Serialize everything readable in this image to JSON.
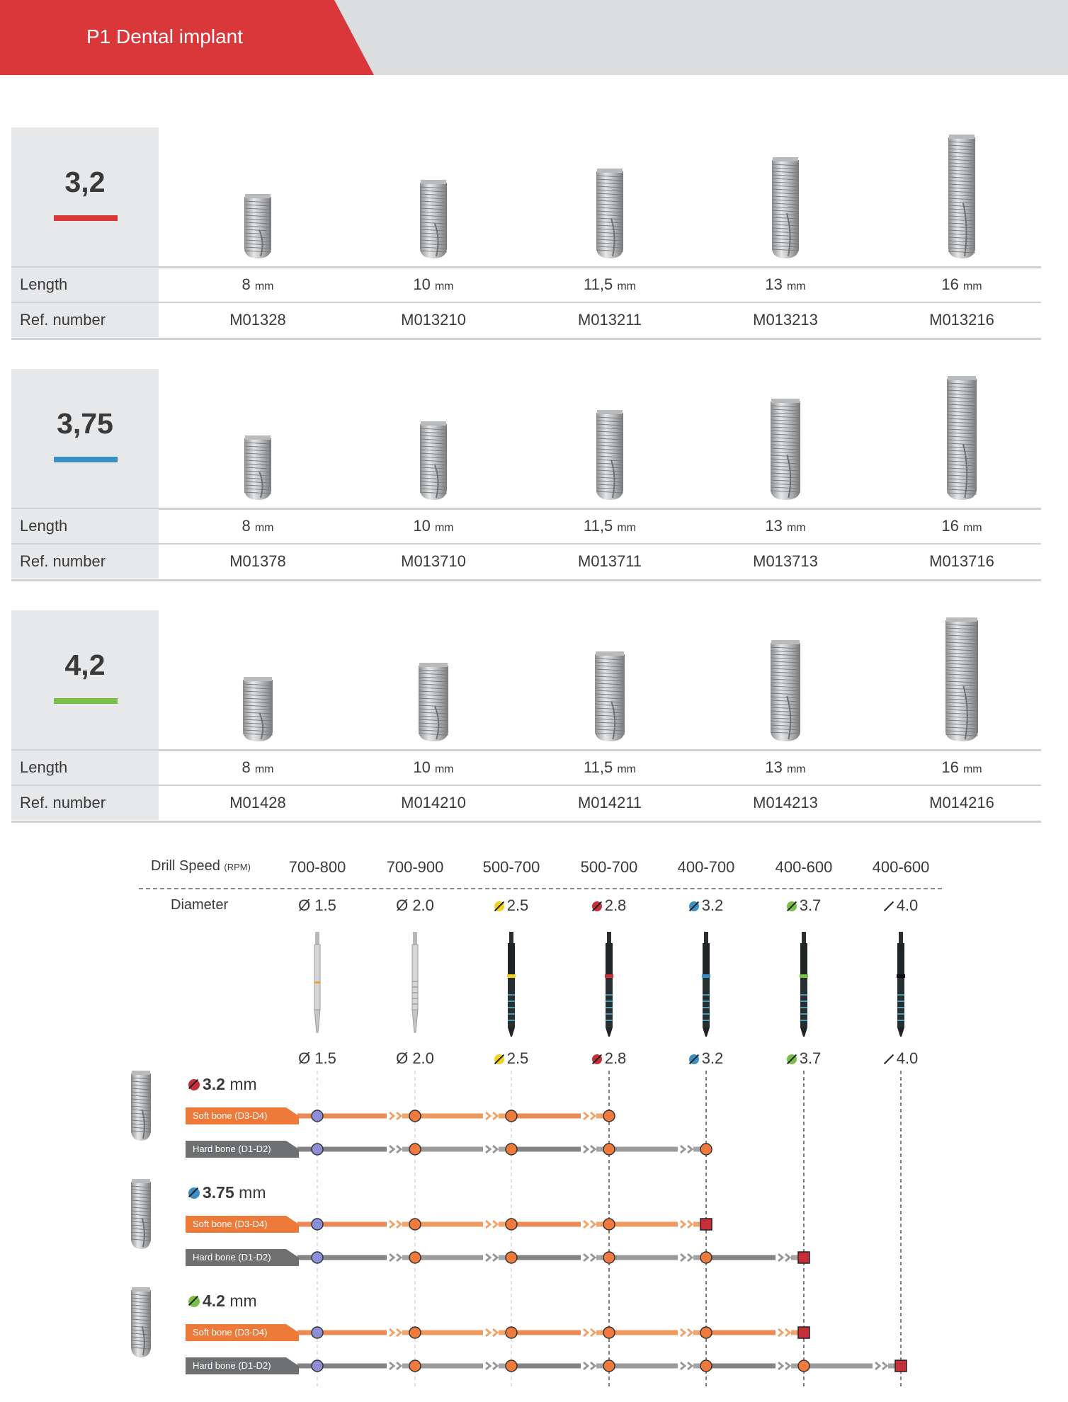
{
  "header": {
    "title": "P1 Dental implant"
  },
  "colors": {
    "red": "#d9373a",
    "blue": "#3a8fc4",
    "green": "#7bbf48",
    "yellow": "#f2d21e",
    "orange": "#ee7a3a",
    "grey": "#7b7b7b",
    "dark_red": "#c62e38"
  },
  "labels": {
    "length": "Length",
    "ref": "Ref. number",
    "mm": "mm"
  },
  "implants": [
    {
      "diameter": "3,2",
      "color": "red",
      "items": [
        {
          "length": "8",
          "ref": "M01328"
        },
        {
          "length": "10",
          "ref": "M013210"
        },
        {
          "length": "11,5",
          "ref": "M013211"
        },
        {
          "length": "13",
          "ref": "M013213"
        },
        {
          "length": "16",
          "ref": "M013216"
        }
      ]
    },
    {
      "diameter": "3,75",
      "color": "blue",
      "items": [
        {
          "length": "8",
          "ref": "M01378"
        },
        {
          "length": "10",
          "ref": "M013710"
        },
        {
          "length": "11,5",
          "ref": "M013711"
        },
        {
          "length": "13",
          "ref": "M013713"
        },
        {
          "length": "16",
          "ref": "M013716"
        }
      ]
    },
    {
      "diameter": "4,2",
      "color": "green",
      "items": [
        {
          "length": "8",
          "ref": "M01428"
        },
        {
          "length": "10",
          "ref": "M014210"
        },
        {
          "length": "11,5",
          "ref": "M014211"
        },
        {
          "length": "13",
          "ref": "M014213"
        },
        {
          "length": "16",
          "ref": "M014216"
        }
      ]
    }
  ],
  "drills": {
    "speed_label": "Drill Speed",
    "speed_unit": "(RPM)",
    "diameter_label": "Diameter",
    "items": [
      {
        "speed": "700-800",
        "diameter": "Ø 1.5",
        "value": "1.5",
        "type": "pilot-silver",
        "band": ""
      },
      {
        "speed": "700-900",
        "diameter": "Ø 2.0",
        "value": "2.0",
        "type": "twist-silver",
        "band": ""
      },
      {
        "speed": "500-700",
        "diameter": "2.5",
        "value": "2.5",
        "type": "black",
        "band": "yellow"
      },
      {
        "speed": "500-700",
        "diameter": "2.8",
        "value": "2.8",
        "type": "black",
        "band": "dark_red"
      },
      {
        "speed": "400-700",
        "diameter": "3.2",
        "value": "3.2",
        "type": "black",
        "band": "blue"
      },
      {
        "speed": "400-600",
        "diameter": "3.7",
        "value": "3.7",
        "type": "black",
        "band": "green"
      },
      {
        "speed": "400-600",
        "diameter": "4.0",
        "value": "4.0",
        "type": "black",
        "band": "black"
      }
    ]
  },
  "protocols": [
    {
      "size": "3.2",
      "unit": "mm",
      "sym_color": "dark_red",
      "rows": [
        {
          "label": "Soft bone (D3-D4)",
          "bone": "soft",
          "end": 3
        },
        {
          "label": "Hard bone (D1-D2)",
          "bone": "hard",
          "end": 4
        }
      ]
    },
    {
      "size": "3.75",
      "unit": "mm",
      "sym_color": "blue",
      "rows": [
        {
          "label": "Soft bone (D3-D4)",
          "bone": "soft",
          "end": 4
        },
        {
          "label": "Hard bone (D1-D2)",
          "bone": "hard",
          "end": 5
        }
      ]
    },
    {
      "size": "4.2",
      "unit": "mm",
      "sym_color": "green",
      "rows": [
        {
          "label": "Soft bone (D3-D4)",
          "bone": "soft",
          "end": 5
        },
        {
          "label": "Hard bone (D1-D2)",
          "bone": "hard",
          "end": 6
        }
      ]
    }
  ]
}
